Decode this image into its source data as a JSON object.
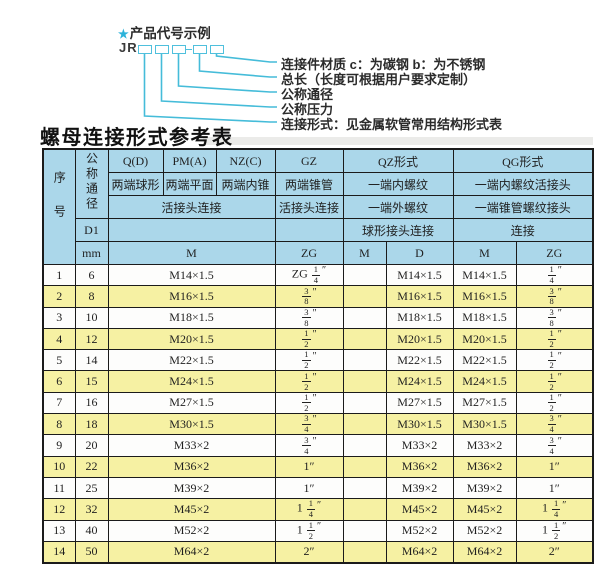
{
  "diagram": {
    "star": "★",
    "heading": "产品代号示例",
    "code_prefix": "JR",
    "box_count": 5,
    "labels": [
      "连接件材质  c：为碳钢  b：为不锈钢",
      "总长（长度可根据用户要求定制）",
      "公称通径",
      "公称压力",
      "连接形式：见金属软管常用结构形式表"
    ]
  },
  "table_title": "螺母连接形式参考表",
  "table": {
    "header": {
      "seq": "序号",
      "dn": "公称通径",
      "d1": "D1",
      "mm": "mm",
      "codes": {
        "q": "Q(D)",
        "pm": "PM(A)",
        "nz": "NZ(C)",
        "gz": "GZ",
        "qz": "QZ形式",
        "qg": "QG形式"
      },
      "types": {
        "q": "两端球形",
        "pm": "两端平面",
        "nz": "两端内锥",
        "gz": "两端锥管",
        "qz": "一端内螺纹",
        "qg": "一端内螺纹活接头"
      },
      "row3": {
        "qpn": "活接头连接",
        "gz": "活接头连接",
        "qz": "一端外螺纹",
        "qg": "一端锥管螺纹接头"
      },
      "row4": {
        "qz": "球形接头连接",
        "qg": "连接"
      },
      "units": {
        "qpn": "M",
        "gz": "ZG",
        "qz_m": "M",
        "qz_d": "D",
        "qg_m": "M",
        "qg_zg": "ZG"
      }
    },
    "rows": [
      [
        "1",
        "6",
        "M14×1.5",
        "ZG 1/4″",
        "",
        "M14×1.5",
        "M14×1.5",
        "1/4″"
      ],
      [
        "2",
        "8",
        "M16×1.5",
        "3/8″",
        "",
        "M16×1.5",
        "M16×1.5",
        "3/8″"
      ],
      [
        "3",
        "10",
        "M18×1.5",
        "3/8″",
        "",
        "M18×1.5",
        "M18×1.5",
        "3/8″"
      ],
      [
        "4",
        "12",
        "M20×1.5",
        "1/2″",
        "",
        "M20×1.5",
        "M20×1.5",
        "1/2″"
      ],
      [
        "5",
        "14",
        "M22×1.5",
        "1/2″",
        "",
        "M22×1.5",
        "M22×1.5",
        "1/2″"
      ],
      [
        "6",
        "15",
        "M24×1.5",
        "1/2″",
        "",
        "M24×1.5",
        "M24×1.5",
        "1/2″"
      ],
      [
        "7",
        "16",
        "M27×1.5",
        "1/2″",
        "",
        "M27×1.5",
        "M27×1.5",
        "1/2″"
      ],
      [
        "8",
        "18",
        "M30×1.5",
        "3/4″",
        "",
        "M30×1.5",
        "M30×1.5",
        "3/4″"
      ],
      [
        "9",
        "20",
        "M33×2",
        "3/4″",
        "",
        "M33×2",
        "M33×2",
        "3/4″"
      ],
      [
        "10",
        "22",
        "M36×2",
        "1″",
        "",
        "M36×2",
        "M36×2",
        "1″"
      ],
      [
        "11",
        "25",
        "M39×2",
        "1″",
        "",
        "M39×2",
        "M39×2",
        "1″"
      ],
      [
        "12",
        "32",
        "M45×2",
        "1 1/4″",
        "",
        "M45×2",
        "M45×2",
        "1 1/4″"
      ],
      [
        "13",
        "40",
        "M52×2",
        "1 1/2″",
        "",
        "M52×2",
        "M52×2",
        "1 1/2″"
      ],
      [
        "14",
        "50",
        "M64×2",
        "2″",
        "",
        "M64×2",
        "M64×2",
        "2″"
      ]
    ],
    "colors": {
      "header_bg": "#abd7ea",
      "row_yellow": "#f6f1a3",
      "row_white": "#fdfdfc",
      "border": "#1b1b1b",
      "line": "#45bcd9",
      "star": "#2cb3da"
    }
  }
}
